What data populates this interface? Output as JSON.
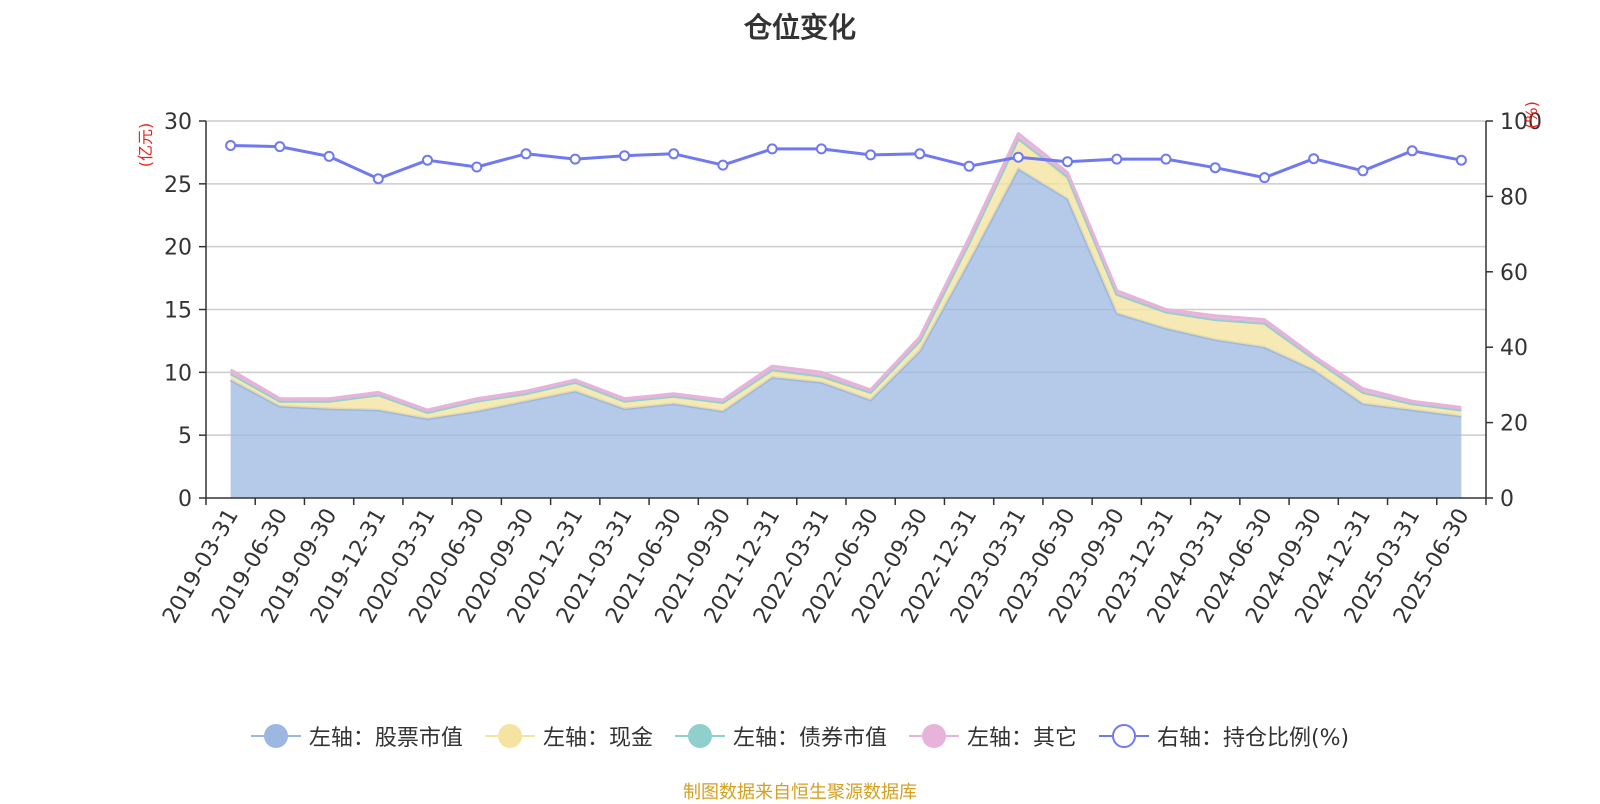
{
  "title": "仓位变化",
  "source": "制图数据来自恒生聚源数据库",
  "chart_data": {
    "type": "area",
    "title": "仓位变化",
    "left_axis_unit": "(亿元)",
    "right_axis_unit": "(%)",
    "ylim_left": [
      0,
      30
    ],
    "yticks_left": [
      0,
      5,
      10,
      15,
      20,
      25,
      30
    ],
    "ylim_right": [
      0,
      100
    ],
    "yticks_right": [
      0,
      20,
      40,
      60,
      80,
      100
    ],
    "x": [
      "2019-03-31",
      "2019-06-30",
      "2019-09-30",
      "2019-12-31",
      "2020-03-31",
      "2020-06-30",
      "2020-09-30",
      "2020-12-31",
      "2021-03-31",
      "2021-06-30",
      "2021-09-30",
      "2021-12-31",
      "2022-03-31",
      "2022-06-30",
      "2022-09-30",
      "2022-12-31",
      "2023-03-31",
      "2023-06-30",
      "2023-09-30",
      "2023-12-31",
      "2024-03-31",
      "2024-06-30",
      "2024-09-30",
      "2024-12-31",
      "2025-03-31",
      "2025-06-30"
    ],
    "stacked_series": [
      {
        "name": "左轴：股票市值",
        "axis": "left",
        "color": "#9cb8e2",
        "values": [
          9.4,
          7.3,
          7.1,
          7.0,
          6.3,
          6.9,
          7.7,
          8.5,
          7.1,
          7.5,
          6.9,
          9.6,
          9.2,
          7.8,
          11.7,
          18.8,
          26.2,
          23.8,
          14.7,
          13.5,
          12.6,
          12.0,
          10.2,
          7.5,
          7.0,
          6.5
        ]
      },
      {
        "name": "左轴：现金",
        "axis": "left",
        "color": "#f5e3a1",
        "values": [
          0.5,
          0.4,
          0.6,
          1.2,
          0.5,
          0.8,
          0.6,
          0.7,
          0.6,
          0.6,
          0.7,
          0.5,
          0.4,
          0.6,
          0.8,
          1.5,
          2.4,
          1.6,
          1.5,
          1.3,
          1.6,
          1.9,
          0.9,
          0.9,
          0.5,
          0.5
        ]
      },
      {
        "name": "左轴：债券市值",
        "axis": "left",
        "color": "#8fd0cc",
        "values": [
          0,
          0,
          0,
          0,
          0,
          0,
          0,
          0,
          0,
          0,
          0,
          0.1,
          0.1,
          0,
          0,
          0,
          0,
          0.2,
          0,
          0,
          0,
          0,
          0,
          0,
          0,
          0
        ]
      },
      {
        "name": "左轴：其它",
        "axis": "left",
        "color": "#e7b3da",
        "values": [
          0.3,
          0.2,
          0.2,
          0.2,
          0.2,
          0.2,
          0.2,
          0.2,
          0.2,
          0.2,
          0.2,
          0.3,
          0.3,
          0.2,
          0.3,
          0.4,
          0.4,
          0.3,
          0.3,
          0.2,
          0.3,
          0.3,
          0.2,
          0.3,
          0.2,
          0.2
        ]
      }
    ],
    "line_series": [
      {
        "name": "右轴：持仓比例(%)",
        "axis": "right",
        "color": "#7079f0",
        "values": [
          93.5,
          93.2,
          90.6,
          84.7,
          89.6,
          87.8,
          91.3,
          89.9,
          90.8,
          91.3,
          88.3,
          92.6,
          92.6,
          91.0,
          91.3,
          88.0,
          90.4,
          89.2,
          89.9,
          89.9,
          87.6,
          85.0,
          90.0,
          86.8,
          92.1,
          89.6
        ]
      }
    ],
    "grid": true,
    "legend_position": "bottom"
  }
}
